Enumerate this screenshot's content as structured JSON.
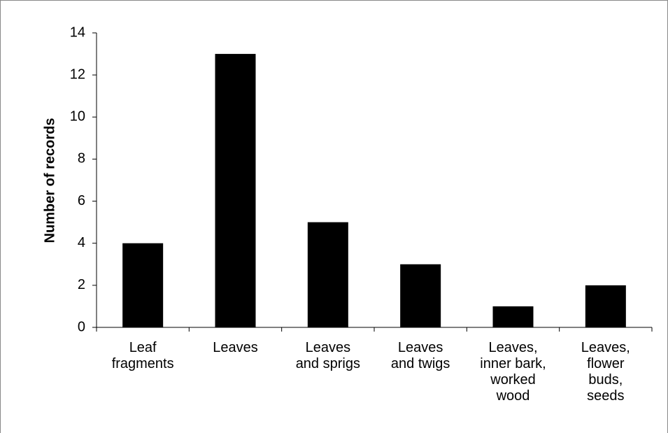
{
  "chart_data": {
    "type": "bar",
    "y_label": "Number of records",
    "categories": [
      "Leaf\nfragments",
      "Leaves",
      "Leaves\nand sprigs",
      "Leaves\nand twigs",
      "Leaves,\ninner bark,\nworked\nwood",
      "Leaves,\nflower\nbuds,\nseeds"
    ],
    "values": [
      4,
      13,
      5,
      3,
      1,
      2
    ],
    "color": "#000000",
    "ylim": [
      0,
      14
    ],
    "yticks": [
      0,
      2,
      4,
      6,
      8,
      10,
      12,
      14
    ],
    "grid": false
  }
}
